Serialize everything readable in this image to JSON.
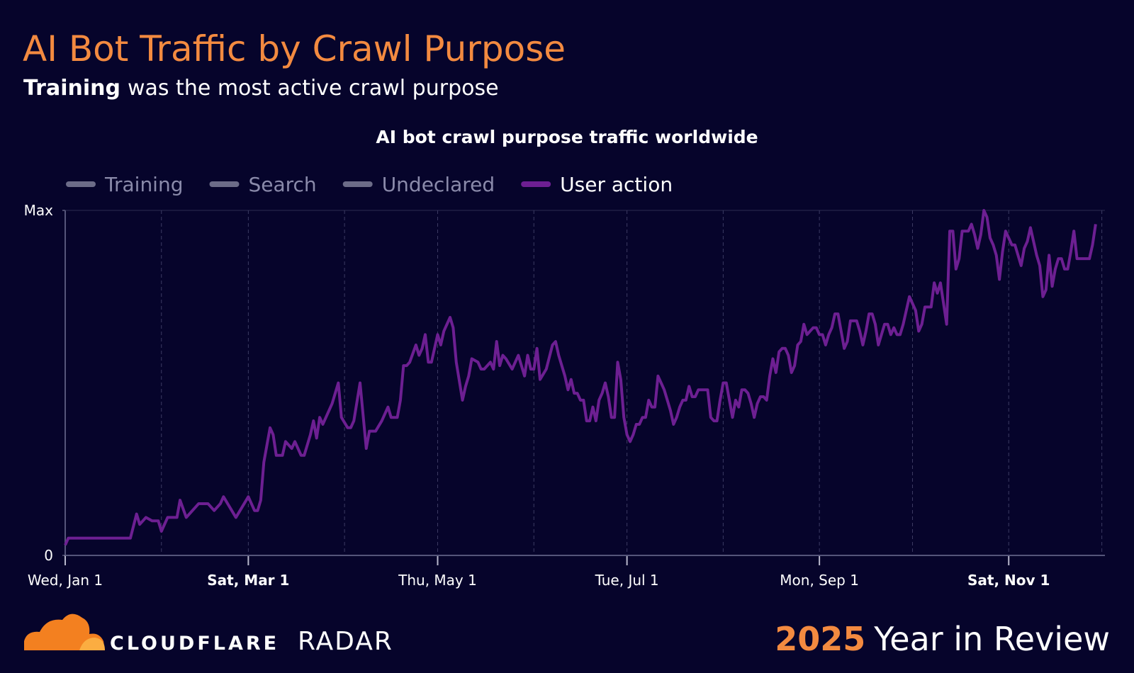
{
  "header": {
    "title": "AI Bot Traffic by Crawl Purpose",
    "subtitle_bold": "Training",
    "subtitle": "was the most active crawl purpose"
  },
  "chart_data": {
    "type": "line",
    "title": "AI bot crawl purpose traffic worldwide",
    "inactive_color": "#6c6c88",
    "x": [
      0,
      1,
      21,
      23,
      24,
      26,
      28,
      30,
      31,
      33,
      36,
      37,
      39,
      41,
      43,
      46,
      48,
      50,
      51,
      53,
      55,
      57,
      59,
      61,
      62,
      63,
      64,
      65,
      66,
      67,
      68,
      70,
      71,
      73,
      74,
      76,
      77,
      79,
      80,
      81,
      82,
      83,
      85,
      86,
      88,
      89,
      91,
      92,
      93,
      95,
      97,
      98,
      100,
      102,
      104,
      105,
      107,
      108,
      109,
      110,
      111,
      113,
      114,
      115,
      116,
      117,
      118,
      119,
      120,
      121,
      122,
      124,
      125,
      126,
      128,
      129,
      130,
      131,
      133,
      134,
      135,
      137,
      138,
      139,
      140,
      141,
      142,
      144,
      146,
      148,
      149,
      150,
      151,
      152,
      153,
      155,
      157,
      158,
      159,
      161,
      162,
      163,
      164,
      165,
      166,
      167,
      168,
      169,
      170,
      171,
      172,
      173,
      174,
      175,
      176,
      177,
      178,
      179,
      180,
      181,
      182,
      183,
      184,
      185,
      186,
      187,
      188,
      189,
      190,
      191,
      192,
      193,
      194,
      195,
      196,
      197,
      198,
      199,
      200,
      201,
      202,
      203,
      204,
      205,
      206,
      207,
      208,
      209,
      210,
      211,
      212,
      213,
      214,
      215,
      216,
      217,
      218,
      219,
      220,
      221,
      222,
      223,
      224,
      225,
      226,
      227,
      228,
      229,
      230,
      231,
      232,
      233,
      234,
      235,
      236,
      237,
      238,
      239,
      240,
      241,
      242,
      243,
      244,
      245,
      246,
      247,
      248,
      249,
      250,
      251,
      252,
      253,
      254,
      255,
      256,
      257,
      258,
      259,
      260,
      261,
      262,
      263,
      264,
      265,
      266,
      267,
      268,
      269,
      270,
      271,
      272,
      273,
      274,
      275,
      276,
      277,
      278,
      279,
      280,
      281,
      282,
      283,
      284,
      285,
      286,
      287,
      288,
      289,
      290,
      291,
      292,
      293,
      294,
      295,
      296,
      297,
      298,
      299,
      300,
      301,
      302,
      303,
      304,
      305,
      306,
      307,
      308,
      309,
      310,
      311,
      312,
      313,
      314,
      315,
      316,
      317,
      318,
      319,
      320,
      321,
      322,
      323,
      324,
      325,
      326,
      327,
      328,
      329,
      330,
      331,
      332
    ],
    "series": [
      {
        "name": "Training",
        "hidden": true
      },
      {
        "name": "Search",
        "hidden": true
      },
      {
        "name": "Undeclared",
        "hidden": true
      },
      {
        "name": "User action",
        "color": "#6d1f92",
        "values": [
          0.03,
          0.05,
          0.05,
          0.12,
          0.09,
          0.11,
          0.1,
          0.1,
          0.07,
          0.11,
          0.11,
          0.16,
          0.11,
          0.13,
          0.15,
          0.15,
          0.13,
          0.15,
          0.17,
          0.14,
          0.11,
          0.14,
          0.17,
          0.13,
          0.13,
          0.16,
          0.27,
          0.32,
          0.37,
          0.35,
          0.29,
          0.29,
          0.33,
          0.31,
          0.33,
          0.29,
          0.29,
          0.35,
          0.39,
          0.34,
          0.4,
          0.38,
          0.42,
          0.44,
          0.5,
          0.4,
          0.37,
          0.37,
          0.39,
          0.5,
          0.31,
          0.36,
          0.36,
          0.39,
          0.43,
          0.4,
          0.4,
          0.45,
          0.55,
          0.55,
          0.56,
          0.61,
          0.58,
          0.6,
          0.64,
          0.56,
          0.56,
          0.6,
          0.64,
          0.61,
          0.65,
          0.69,
          0.66,
          0.56,
          0.45,
          0.49,
          0.52,
          0.57,
          0.56,
          0.54,
          0.54,
          0.56,
          0.54,
          0.62,
          0.55,
          0.58,
          0.57,
          0.54,
          0.58,
          0.52,
          0.58,
          0.54,
          0.54,
          0.6,
          0.51,
          0.54,
          0.61,
          0.62,
          0.58,
          0.52,
          0.48,
          0.51,
          0.47,
          0.47,
          0.45,
          0.45,
          0.39,
          0.39,
          0.43,
          0.39,
          0.45,
          0.47,
          0.5,
          0.46,
          0.4,
          0.4,
          0.56,
          0.51,
          0.4,
          0.35,
          0.33,
          0.35,
          0.38,
          0.38,
          0.4,
          0.4,
          0.45,
          0.43,
          0.43,
          0.52,
          0.5,
          0.48,
          0.45,
          0.42,
          0.38,
          0.4,
          0.43,
          0.45,
          0.45,
          0.49,
          0.46,
          0.46,
          0.48,
          0.48,
          0.48,
          0.48,
          0.4,
          0.39,
          0.39,
          0.45,
          0.5,
          0.5,
          0.45,
          0.4,
          0.45,
          0.43,
          0.48,
          0.48,
          0.47,
          0.44,
          0.4,
          0.44,
          0.46,
          0.46,
          0.45,
          0.52,
          0.57,
          0.53,
          0.59,
          0.6,
          0.6,
          0.58,
          0.53,
          0.55,
          0.61,
          0.62,
          0.67,
          0.64,
          0.65,
          0.66,
          0.66,
          0.64,
          0.64,
          0.61,
          0.64,
          0.66,
          0.7,
          0.7,
          0.65,
          0.6,
          0.62,
          0.68,
          0.68,
          0.68,
          0.65,
          0.61,
          0.65,
          0.7,
          0.7,
          0.67,
          0.61,
          0.64,
          0.67,
          0.67,
          0.64,
          0.66,
          0.64,
          0.64,
          0.67,
          0.71,
          0.75,
          0.73,
          0.71,
          0.65,
          0.67,
          0.72,
          0.72,
          0.72,
          0.79,
          0.76,
          0.79,
          0.73,
          0.67,
          0.94,
          0.94,
          0.83,
          0.86,
          0.94,
          0.94,
          0.94,
          0.96,
          0.93,
          0.89,
          0.93,
          1.0,
          0.98,
          0.92,
          0.9,
          0.87,
          0.8,
          0.88,
          0.94,
          0.92,
          0.9,
          0.9,
          0.87,
          0.84,
          0.89,
          0.91,
          0.95,
          0.91,
          0.87,
          0.84,
          0.75,
          0.77,
          0.87,
          0.78,
          0.83,
          0.86,
          0.86,
          0.83,
          0.83,
          0.88,
          0.94,
          0.86,
          0.86,
          0.86,
          0.86,
          0.86,
          0.9,
          0.96
        ]
      }
    ],
    "xlim": [
      0,
      335
    ],
    "xticks": [
      {
        "value": 0,
        "label": "Wed, Jan 1"
      },
      {
        "value": 59,
        "label": "Sat, Mar 1",
        "bold": true
      },
      {
        "value": 120,
        "label": "Thu, May 1"
      },
      {
        "value": 181,
        "label": "Tue, Jul 1"
      },
      {
        "value": 243,
        "label": "Mon, Sep 1"
      },
      {
        "value": 304,
        "label": "Sat, Nov 1",
        "bold": true
      }
    ],
    "xgrid": [
      31,
      90,
      151,
      212,
      273,
      334
    ],
    "ylim": [
      0,
      1
    ],
    "yticks": [
      0,
      {
        "value": 1,
        "label": "Max"
      }
    ],
    "grid": true
  },
  "footer": {
    "brand": "CLOUDFLARE",
    "product": "RADAR",
    "year": "2025",
    "tagline": "Year in Review"
  }
}
